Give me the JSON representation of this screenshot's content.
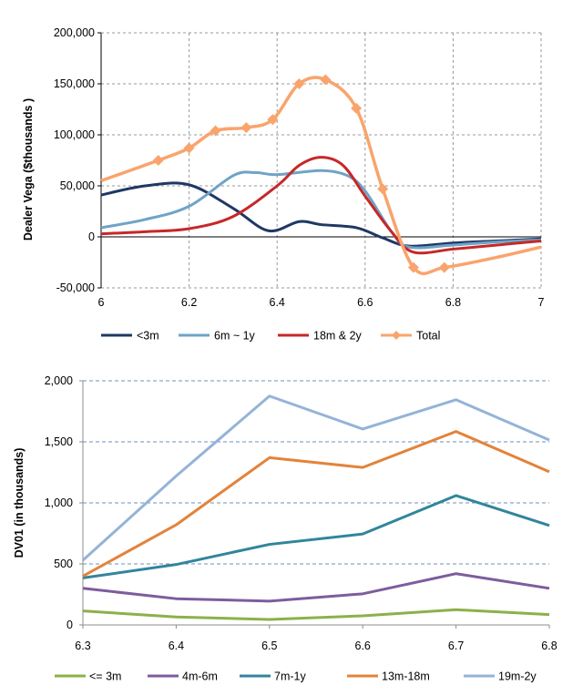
{
  "chart_data": [
    {
      "type": "line",
      "title": "",
      "xlabel": "",
      "ylabel": "Dealer Vega ($thousands )",
      "xlim": [
        6,
        7
      ],
      "ylim": [
        -50000,
        200000
      ],
      "x_ticks": [
        "6",
        "6.2",
        "6.4",
        "6.6",
        "6.8",
        "7"
      ],
      "y_ticks": [
        "200,000",
        "150,000",
        "100,000",
        "50,000",
        "0",
        "-50,000"
      ],
      "grid": "dashed",
      "legend": "bottom",
      "series": [
        {
          "name": "<3m",
          "color": "#1f3864",
          "x": [
            6,
            6.1,
            6.2,
            6.3,
            6.38,
            6.45,
            6.5,
            6.58,
            6.64,
            6.7,
            6.8,
            6.9,
            7
          ],
          "y": [
            41000,
            50000,
            51000,
            28000,
            6000,
            15000,
            12000,
            9000,
            -1000,
            -9000,
            -6000,
            -4000,
            -2000
          ]
        },
        {
          "name": "6m ~ 1y",
          "color": "#6fa3c7",
          "x": [
            6,
            6.1,
            6.2,
            6.3,
            6.35,
            6.4,
            6.5,
            6.56,
            6.6,
            6.66,
            6.7,
            6.8,
            6.9,
            7
          ],
          "y": [
            9000,
            17000,
            30000,
            60000,
            63000,
            61000,
            65000,
            60000,
            45000,
            5000,
            -10000,
            -8000,
            -5000,
            -3000
          ]
        },
        {
          "name": "18m & 2y",
          "color": "#c62828",
          "x": [
            6,
            6.1,
            6.2,
            6.3,
            6.4,
            6.45,
            6.5,
            6.55,
            6.6,
            6.66,
            6.71,
            6.8,
            6.9,
            7
          ],
          "y": [
            3000,
            5000,
            8000,
            20000,
            50000,
            70000,
            78000,
            70000,
            40000,
            5000,
            -15000,
            -12000,
            -8000,
            -4000
          ]
        },
        {
          "name": "Total",
          "color": "#f9a46d",
          "marker": "diamond",
          "x": [
            6,
            6.13,
            6.2,
            6.26,
            6.33,
            6.39,
            6.45,
            6.51,
            6.58,
            6.64,
            6.71,
            6.78,
            6.9,
            7
          ],
          "y": [
            55000,
            75000,
            87000,
            104000,
            107000,
            115000,
            150000,
            154000,
            126000,
            47000,
            -30000,
            -30000,
            -20000,
            -10000
          ],
          "marker_x": [
            6.13,
            6.2,
            6.26,
            6.33,
            6.39,
            6.45,
            6.51,
            6.58,
            6.64,
            6.71,
            6.78
          ]
        }
      ]
    },
    {
      "type": "line",
      "title": "",
      "xlabel": "",
      "ylabel": "DV01 (in thousands)",
      "xlim": [
        6.3,
        6.8
      ],
      "ylim": [
        0,
        2000
      ],
      "x_ticks": [
        "6.3",
        "6.4",
        "6.5",
        "6.6",
        "6.7",
        "6.8"
      ],
      "y_ticks": [
        "2,000",
        "1,500",
        "1,000",
        "500",
        "0"
      ],
      "grid": "horizontal dashed",
      "legend": "bottom",
      "series": [
        {
          "name": "<= 3m",
          "color": "#8db04a",
          "x": [
            6.3,
            6.4,
            6.5,
            6.6,
            6.7,
            6.8
          ],
          "y": [
            115,
            65,
            45,
            75,
            125,
            85
          ]
        },
        {
          "name": "4m-6m",
          "color": "#7e5c9e",
          "x": [
            6.3,
            6.4,
            6.5,
            6.6,
            6.7,
            6.8
          ],
          "y": [
            300,
            215,
            195,
            255,
            420,
            300
          ]
        },
        {
          "name": "7m-1y",
          "color": "#31859c",
          "x": [
            6.3,
            6.4,
            6.5,
            6.6,
            6.7,
            6.8
          ],
          "y": [
            385,
            495,
            660,
            745,
            1060,
            815
          ]
        },
        {
          "name": "13m-18m",
          "color": "#e3833a",
          "x": [
            6.3,
            6.4,
            6.5,
            6.6,
            6.7,
            6.8
          ],
          "y": [
            400,
            820,
            1370,
            1290,
            1585,
            1255
          ]
        },
        {
          "name": "19m-2y",
          "color": "#95b3d7",
          "x": [
            6.3,
            6.4,
            6.5,
            6.6,
            6.7,
            6.8
          ],
          "y": [
            530,
            1220,
            1875,
            1605,
            1845,
            1515
          ]
        }
      ]
    }
  ]
}
